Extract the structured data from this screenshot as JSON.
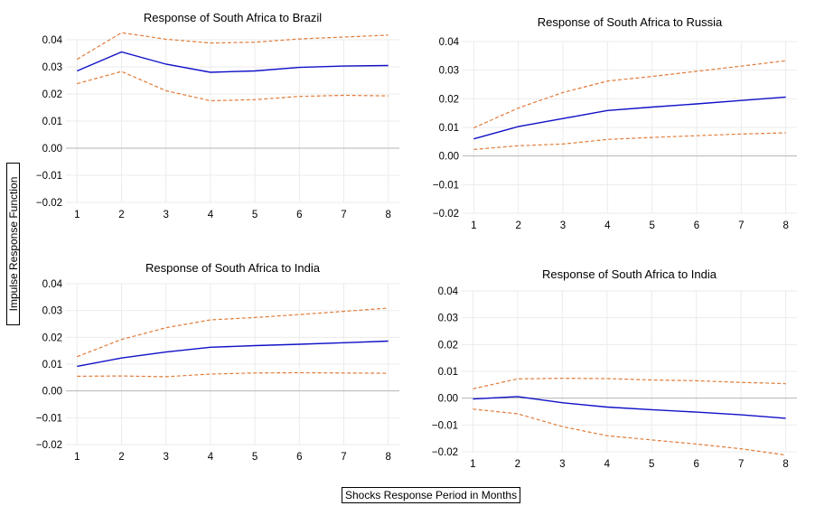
{
  "figure": {
    "ylabel": "Impulse Response Function",
    "xlabel": "Shocks Response Period in Months"
  },
  "colors": {
    "response": "#1010c8",
    "band": "#e07b39"
  },
  "chart_data": [
    {
      "type": "line",
      "title": "Response of South Africa to Brazil",
      "x": [
        1,
        2,
        3,
        4,
        5,
        6,
        7,
        8
      ],
      "xlim": [
        0.75,
        8.25
      ],
      "ylim": [
        -0.02,
        0.04
      ],
      "yticks": [
        -0.02,
        -0.01,
        0.0,
        0.01,
        0.02,
        0.03,
        0.04
      ],
      "ytick_labels": [
        "−0.02",
        "−0.01",
        "0.00",
        "0.01",
        "0.02",
        "0.03",
        "0.04"
      ],
      "series": [
        {
          "role": "response",
          "values": [
            0.0285,
            0.0355,
            0.031,
            0.028,
            0.0285,
            0.0298,
            0.0303,
            0.0305
          ]
        },
        {
          "role": "upper",
          "values": [
            0.0328,
            0.0426,
            0.0402,
            0.0388,
            0.0391,
            0.0403,
            0.041,
            0.0417
          ]
        },
        {
          "role": "lower",
          "values": [
            0.0238,
            0.0283,
            0.0212,
            0.0175,
            0.0179,
            0.0191,
            0.0195,
            0.0193
          ]
        }
      ]
    },
    {
      "type": "line",
      "title": "Response of South Africa to Russia",
      "x": [
        1,
        2,
        3,
        4,
        5,
        6,
        7,
        8
      ],
      "xlim": [
        0.75,
        8.25
      ],
      "ylim": [
        -0.02,
        0.04
      ],
      "yticks": [
        -0.02,
        -0.01,
        0.0,
        0.01,
        0.02,
        0.03,
        0.04
      ],
      "ytick_labels": [
        "−0.02",
        "−0.01",
        "0.00",
        "0.01",
        "0.02",
        "0.03",
        "0.04"
      ],
      "series": [
        {
          "role": "response",
          "values": [
            0.006,
            0.0103,
            0.0131,
            0.0159,
            0.0171,
            0.0182,
            0.0194,
            0.0206
          ]
        },
        {
          "role": "upper",
          "values": [
            0.0098,
            0.0168,
            0.0222,
            0.0262,
            0.0278,
            0.0296,
            0.0314,
            0.0333
          ]
        },
        {
          "role": "lower",
          "values": [
            0.0023,
            0.0036,
            0.0042,
            0.0058,
            0.0065,
            0.0071,
            0.0077,
            0.0081
          ]
        }
      ]
    },
    {
      "type": "line",
      "title": "Response of South Africa to India",
      "x": [
        1,
        2,
        3,
        4,
        5,
        6,
        7,
        8
      ],
      "xlim": [
        0.75,
        8.25
      ],
      "ylim": [
        -0.02,
        0.04
      ],
      "yticks": [
        -0.02,
        -0.01,
        0.0,
        0.01,
        0.02,
        0.03,
        0.04
      ],
      "ytick_labels": [
        "−0.02",
        "−0.01",
        "0.00",
        "0.01",
        "0.02",
        "0.03",
        "0.04"
      ],
      "series": [
        {
          "role": "response",
          "values": [
            0.0092,
            0.0123,
            0.0145,
            0.0163,
            0.0169,
            0.0174,
            0.018,
            0.0186
          ]
        },
        {
          "role": "upper",
          "values": [
            0.0128,
            0.0192,
            0.0236,
            0.0265,
            0.0274,
            0.0285,
            0.0297,
            0.0309
          ]
        },
        {
          "role": "lower",
          "values": [
            0.0055,
            0.0056,
            0.0053,
            0.0063,
            0.0067,
            0.0068,
            0.0067,
            0.0066
          ]
        }
      ]
    },
    {
      "type": "line",
      "title": "Response of South Africa to India",
      "x": [
        1,
        2,
        3,
        4,
        5,
        6,
        7,
        8
      ],
      "xlim": [
        0.75,
        8.25
      ],
      "ylim": [
        -0.02,
        0.04
      ],
      "yticks": [
        -0.02,
        -0.01,
        0.0,
        0.01,
        0.02,
        0.03,
        0.04
      ],
      "ytick_labels": [
        "−0.02",
        "−0.01",
        "0.00",
        "0.01",
        "0.02",
        "0.03",
        "0.04"
      ],
      "series": [
        {
          "role": "response",
          "values": [
            -0.0003,
            0.0006,
            -0.0017,
            -0.0033,
            -0.0043,
            -0.0052,
            -0.0062,
            -0.0075
          ]
        },
        {
          "role": "upper",
          "values": [
            0.0035,
            0.0072,
            0.0074,
            0.0073,
            0.0068,
            0.0065,
            0.0059,
            0.0054
          ]
        },
        {
          "role": "lower",
          "values": [
            -0.0041,
            -0.0058,
            -0.0106,
            -0.014,
            -0.0156,
            -0.0171,
            -0.0189,
            -0.0212
          ]
        }
      ]
    }
  ]
}
